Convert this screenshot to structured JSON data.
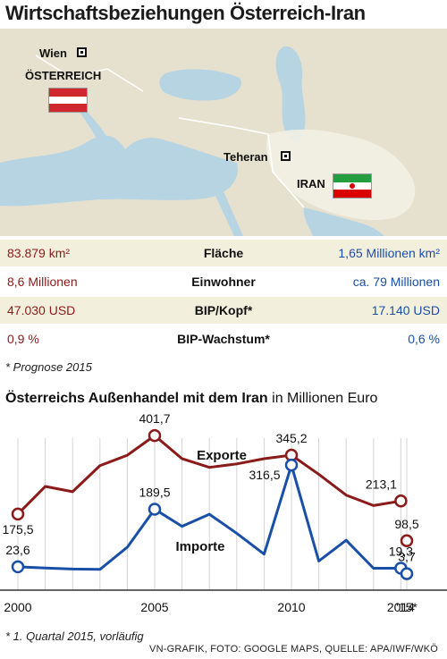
{
  "title": "Wirtschaftsbeziehungen Österreich-Iran",
  "map": {
    "wien_label": "Wien",
    "oesterreich_label": "ÖSTERREICH",
    "teheran_label": "Teheran",
    "iran_label": "IRAN"
  },
  "table": [
    {
      "left": "83.879 km²",
      "mid": "Fläche",
      "right": "1,65 Millionen km²"
    },
    {
      "left": "8,6 Millionen",
      "mid": "Einwohner",
      "right": "ca. 79 Millionen"
    },
    {
      "left": "47.030 USD",
      "mid": "BIP/Kopf*",
      "right": "17.140 USD"
    },
    {
      "left": "0,9 %",
      "mid": "BIP-Wachstum*",
      "right": "0,6 %"
    }
  ],
  "footnote1": "* Prognose 2015",
  "chart_title_bold": "Österreichs Außenhandel mit dem Iran",
  "chart_title_rest": " in Millionen Euro",
  "footnote2": "* 1. Quartal 2015, vorläufig",
  "source": "VN-GRAFIK, FOTO: GOOGLE MAPS, QUELLE: APA/IWF/WKÖ",
  "colors": {
    "exporte": "#8b1a1a",
    "importe": "#1a4fa8"
  },
  "chart_data": {
    "type": "line",
    "x": [
      2000,
      2001,
      2002,
      2003,
      2004,
      2005,
      2006,
      2007,
      2008,
      2009,
      2010,
      2011,
      2012,
      2013,
      2014
    ],
    "x_tick_labels": [
      "2000",
      "2005",
      "2010",
      "2014",
      "'15*"
    ],
    "series": [
      {
        "name": "Exporte",
        "values": [
          175.5,
          255,
          240,
          315,
          345,
          401.7,
          335,
          310,
          320,
          335,
          345.2,
          290,
          230,
          200,
          213.1
        ],
        "extra": {
          "label": "'15*",
          "value": 98.5
        }
      },
      {
        "name": "Importe",
        "values": [
          23.6,
          20,
          17,
          16,
          80,
          189.5,
          140,
          175,
          120,
          60,
          316.5,
          40,
          100,
          19.3,
          19.3
        ],
        "extra": {
          "label": "'15*",
          "value": 3.7
        }
      }
    ],
    "labeled_points": [
      {
        "series": "Exporte",
        "x": 2000,
        "text": "175,5"
      },
      {
        "series": "Exporte",
        "x": 2005,
        "text": "401,7"
      },
      {
        "series": "Exporte",
        "x": 2010,
        "text": "345,2"
      },
      {
        "series": "Exporte",
        "x": 2014,
        "text": "213,1"
      },
      {
        "series": "Exporte",
        "x": "'15*",
        "text": "98,5"
      },
      {
        "series": "Importe",
        "x": 2000,
        "text": "23,6"
      },
      {
        "series": "Importe",
        "x": 2005,
        "text": "189,5"
      },
      {
        "series": "Importe",
        "x": 2010,
        "text": "316,5"
      },
      {
        "series": "Importe",
        "x": 2014,
        "text": "19,3"
      },
      {
        "series": "Importe",
        "x": "'15*",
        "text": "3,7"
      }
    ],
    "ylim": [
      0,
      420
    ],
    "grid": "vertical"
  }
}
